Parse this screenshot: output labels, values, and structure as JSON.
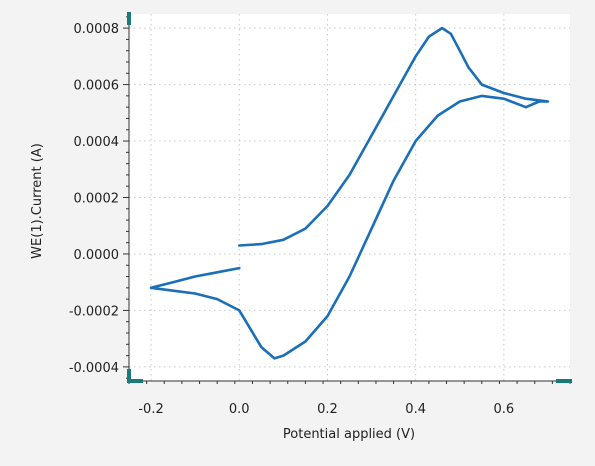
{
  "chart_data": {
    "type": "line",
    "title": "",
    "xlabel": "Potential applied (V)",
    "ylabel": "WE(1).Current (A)",
    "xlim": [
      -0.25,
      0.75
    ],
    "ylim": [
      -0.00045,
      0.00085
    ],
    "x_ticks": [
      -0.2,
      0.0,
      0.2,
      0.4,
      0.6
    ],
    "x_tick_labels": [
      "-0.2",
      "0.0",
      "0.2",
      "0.4",
      "0.6"
    ],
    "y_ticks": [
      -0.0004,
      -0.0002,
      0.0,
      0.0002,
      0.0004,
      0.0006,
      0.0008
    ],
    "y_tick_labels": [
      "-0.0004",
      "-0.0002",
      "0.0000",
      "0.0002",
      "0.0004",
      "0.0006",
      "0.0008"
    ],
    "grid": true,
    "legend": "none",
    "colors": {
      "series": "#1a6fb8",
      "axis": "#333333",
      "grid": "#c8c8c8",
      "corner_marker": "#1a7a7a",
      "plot_background": "#ffffff",
      "page_background": "#f3f3f3"
    },
    "series": [
      {
        "x": [
          0.0,
          0.05,
          0.1,
          0.15,
          0.2,
          0.25,
          0.3,
          0.35,
          0.4,
          0.43,
          0.46,
          0.48,
          0.5,
          0.52,
          0.55,
          0.6,
          0.65,
          0.7,
          0.68,
          0.65,
          0.6,
          0.55,
          0.5,
          0.45,
          0.4,
          0.35,
          0.3,
          0.25,
          0.2,
          0.15,
          0.1,
          0.08,
          0.05,
          0.0,
          -0.05,
          -0.1,
          -0.15,
          -0.2,
          -0.15,
          -0.1,
          -0.05,
          0.0
        ],
        "y": [
          3e-05,
          3.5e-05,
          5e-05,
          9e-05,
          0.00017,
          0.00028,
          0.00042,
          0.00056,
          0.0007,
          0.00077,
          0.0008,
          0.00078,
          0.00072,
          0.00066,
          0.0006,
          0.00057,
          0.00055,
          0.00054,
          0.00054,
          0.00052,
          0.00055,
          0.00056,
          0.00054,
          0.00049,
          0.0004,
          0.00026,
          9e-05,
          -8e-05,
          -0.00022,
          -0.00031,
          -0.00036,
          -0.00037,
          -0.00033,
          -0.0002,
          -0.00016,
          -0.00014,
          -0.00013,
          -0.00012,
          -0.0001,
          -8e-05,
          -6.5e-05,
          -5e-05
        ]
      }
    ]
  }
}
